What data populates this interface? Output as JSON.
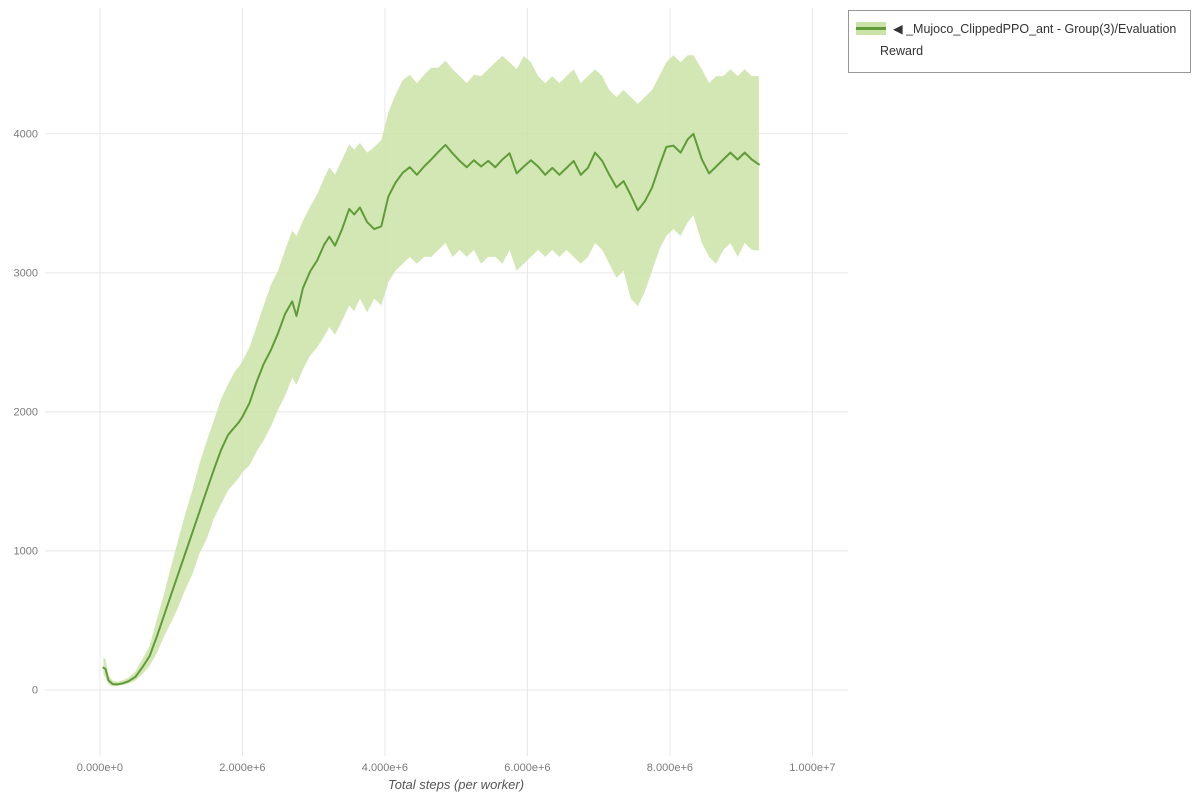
{
  "chart_data": {
    "type": "line",
    "title": "",
    "xlabel": "Total steps (per worker)",
    "ylabel": "",
    "legend_label": "◀ _Mujoco_ClippedPPO_ant - Group(3)/Evaluation Reward",
    "legend_position": "top-right-outside",
    "grid": true,
    "line_color": "#5f9c38",
    "band_color": "#cbe3a8",
    "grid_color": "#e8e8e8",
    "xlim_millions": [
      -0.77,
      10.5
    ],
    "ylim": [
      -475,
      4905
    ],
    "x_ticks": [
      {
        "value": 0,
        "label": "0.000e+0"
      },
      {
        "value": 2,
        "label": "2.000e+6"
      },
      {
        "value": 4,
        "label": "4.000e+6"
      },
      {
        "value": 6,
        "label": "6.000e+6"
      },
      {
        "value": 8,
        "label": "8.000e+6"
      },
      {
        "value": 10,
        "label": "1.000e+7"
      }
    ],
    "y_ticks": [
      {
        "value": 0,
        "label": "0"
      },
      {
        "value": 1000,
        "label": "1000"
      },
      {
        "value": 2000,
        "label": "2000"
      },
      {
        "value": 3000,
        "label": "3000"
      },
      {
        "value": 4000,
        "label": "4000"
      }
    ],
    "series": [
      {
        "name": "_Mujoco_ClippedPPO_ant - Group(3)/Evaluation Reward",
        "x_millions": [
          0.05,
          0.08,
          0.12,
          0.18,
          0.25,
          0.32,
          0.4,
          0.5,
          0.6,
          0.7,
          0.8,
          0.9,
          1.0,
          1.1,
          1.2,
          1.3,
          1.4,
          1.5,
          1.6,
          1.7,
          1.8,
          1.9,
          1.95,
          2.0,
          2.1,
          2.2,
          2.3,
          2.4,
          2.5,
          2.6,
          2.7,
          2.76,
          2.85,
          2.95,
          3.05,
          3.15,
          3.22,
          3.3,
          3.4,
          3.5,
          3.57,
          3.65,
          3.75,
          3.85,
          3.95,
          4.05,
          4.15,
          4.25,
          4.35,
          4.45,
          4.55,
          4.65,
          4.75,
          4.85,
          4.95,
          5.05,
          5.15,
          5.25,
          5.35,
          5.45,
          5.55,
          5.65,
          5.75,
          5.85,
          5.95,
          6.05,
          6.15,
          6.25,
          6.35,
          6.45,
          6.55,
          6.65,
          6.75,
          6.85,
          6.95,
          7.05,
          7.15,
          7.25,
          7.35,
          7.45,
          7.55,
          7.65,
          7.75,
          7.85,
          7.95,
          8.05,
          8.15,
          8.25,
          8.33,
          8.45,
          8.55,
          8.65,
          8.75,
          8.85,
          8.95,
          9.05,
          9.15,
          9.25
        ],
        "mean": [
          160,
          150,
          70,
          42,
          40,
          48,
          62,
          95,
          165,
          245,
          385,
          535,
          685,
          835,
          985,
          1135,
          1285,
          1435,
          1585,
          1725,
          1835,
          1895,
          1925,
          1965,
          2065,
          2215,
          2345,
          2445,
          2565,
          2705,
          2795,
          2690,
          2890,
          3010,
          3090,
          3205,
          3260,
          3195,
          3315,
          3460,
          3420,
          3470,
          3365,
          3315,
          3335,
          3550,
          3650,
          3720,
          3760,
          3705,
          3765,
          3815,
          3870,
          3920,
          3860,
          3805,
          3760,
          3810,
          3765,
          3805,
          3760,
          3815,
          3860,
          3715,
          3765,
          3810,
          3765,
          3705,
          3755,
          3705,
          3755,
          3805,
          3705,
          3755,
          3865,
          3805,
          3705,
          3615,
          3660,
          3560,
          3450,
          3515,
          3615,
          3765,
          3905,
          3915,
          3865,
          3960,
          4000,
          3815,
          3715,
          3765,
          3815,
          3865,
          3815,
          3865,
          3815,
          3780
        ],
        "band_low": [
          110,
          90,
          40,
          28,
          30,
          36,
          46,
          68,
          115,
          175,
          265,
          385,
          485,
          595,
          725,
          835,
          985,
          1085,
          1235,
          1335,
          1435,
          1495,
          1525,
          1565,
          1615,
          1715,
          1795,
          1895,
          2015,
          2115,
          2245,
          2195,
          2305,
          2405,
          2465,
          2545,
          2610,
          2555,
          2655,
          2765,
          2725,
          2815,
          2715,
          2815,
          2765,
          2935,
          3015,
          3065,
          3115,
          3065,
          3115,
          3115,
          3165,
          3215,
          3115,
          3165,
          3115,
          3165,
          3065,
          3115,
          3115,
          3065,
          3165,
          3015,
          3065,
          3115,
          3165,
          3115,
          3165,
          3115,
          3165,
          3115,
          3065,
          3115,
          3215,
          3165,
          3065,
          2965,
          3015,
          2815,
          2760,
          2865,
          3015,
          3165,
          3265,
          3315,
          3265,
          3365,
          3415,
          3215,
          3115,
          3065,
          3165,
          3215,
          3115,
          3215,
          3165,
          3160
        ],
        "band_high": [
          235,
          220,
          110,
          65,
          58,
          70,
          88,
          135,
          225,
          320,
          510,
          690,
          890,
          1080,
          1270,
          1440,
          1630,
          1790,
          1940,
          2090,
          2200,
          2295,
          2325,
          2365,
          2465,
          2615,
          2765,
          2915,
          3015,
          3165,
          3305,
          3265,
          3375,
          3475,
          3565,
          3685,
          3760,
          3705,
          3815,
          3925,
          3885,
          3935,
          3865,
          3905,
          3955,
          4155,
          4285,
          4385,
          4425,
          4365,
          4425,
          4475,
          4475,
          4525,
          4465,
          4415,
          4365,
          4425,
          4415,
          4465,
          4515,
          4560,
          4515,
          4465,
          4560,
          4515,
          4415,
          4365,
          4415,
          4365,
          4415,
          4465,
          4365,
          4415,
          4465,
          4415,
          4315,
          4265,
          4315,
          4265,
          4215,
          4265,
          4315,
          4415,
          4515,
          4565,
          4515,
          4565,
          4565,
          4465,
          4365,
          4415,
          4415,
          4465,
          4415,
          4465,
          4415,
          4415
        ]
      }
    ]
  }
}
